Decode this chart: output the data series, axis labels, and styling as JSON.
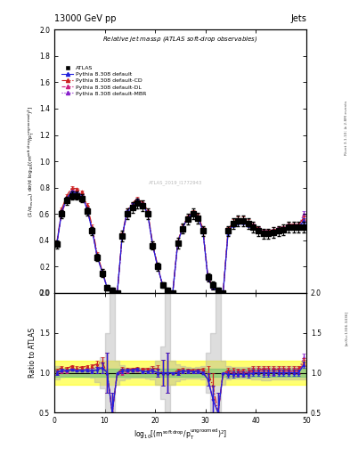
{
  "title_top": "13000 GeV pp",
  "title_right": "Jets",
  "plot_title": "Relative jet massρ (ATLAS soft-drop observables)",
  "ylabel_main": "(1/σ_{resum}) dσ/d log_{10}[(m^{soft drop}/p_T^{ungroomed})^2]",
  "ylabel_ratio": "Ratio to ATLAS",
  "arxiv": "[arXiv:1306.3436]",
  "rivet": "Rivet 3.1.10; ≥ 2.8M events",
  "watermark": "ATLAS_2019_I1772943",
  "xdata": [
    0.5,
    1.5,
    2.5,
    3.5,
    4.5,
    5.5,
    6.5,
    7.5,
    8.5,
    9.5,
    10.5,
    11.5,
    12.5,
    13.5,
    14.5,
    15.5,
    16.5,
    17.5,
    18.5,
    19.5,
    20.5,
    21.5,
    22.5,
    23.5,
    24.5,
    25.5,
    26.5,
    27.5,
    28.5,
    29.5,
    30.5,
    31.5,
    32.5,
    33.5,
    34.5,
    35.5,
    36.5,
    37.5,
    38.5,
    39.5,
    40.5,
    41.5,
    42.5,
    43.5,
    44.5,
    45.5,
    46.5,
    47.5,
    48.5,
    49.5
  ],
  "atlas_y": [
    0.37,
    0.6,
    0.7,
    0.74,
    0.74,
    0.72,
    0.62,
    0.47,
    0.27,
    0.15,
    0.04,
    0.02,
    0.0,
    0.43,
    0.6,
    0.65,
    0.68,
    0.66,
    0.6,
    0.36,
    0.2,
    0.06,
    0.02,
    0.0,
    0.38,
    0.49,
    0.56,
    0.6,
    0.57,
    0.47,
    0.12,
    0.06,
    0.02,
    0.0,
    0.47,
    0.53,
    0.55,
    0.55,
    0.53,
    0.5,
    0.47,
    0.45,
    0.45,
    0.46,
    0.47,
    0.48,
    0.5,
    0.5,
    0.5,
    0.5
  ],
  "atlas_yerr": [
    0.03,
    0.03,
    0.03,
    0.03,
    0.03,
    0.03,
    0.03,
    0.03,
    0.03,
    0.03,
    0.02,
    0.02,
    0.01,
    0.04,
    0.04,
    0.04,
    0.04,
    0.04,
    0.04,
    0.03,
    0.03,
    0.02,
    0.02,
    0.01,
    0.04,
    0.04,
    0.04,
    0.04,
    0.04,
    0.04,
    0.03,
    0.03,
    0.02,
    0.01,
    0.04,
    0.04,
    0.04,
    0.04,
    0.04,
    0.04,
    0.04,
    0.04,
    0.04,
    0.04,
    0.04,
    0.04,
    0.04,
    0.04,
    0.04,
    0.04
  ],
  "py_def_y": [
    0.37,
    0.62,
    0.72,
    0.77,
    0.76,
    0.74,
    0.64,
    0.48,
    0.28,
    0.16,
    0.04,
    0.01,
    0.0,
    0.44,
    0.62,
    0.67,
    0.71,
    0.67,
    0.61,
    0.37,
    0.2,
    0.06,
    0.02,
    0.0,
    0.38,
    0.5,
    0.57,
    0.61,
    0.58,
    0.47,
    0.11,
    0.04,
    0.01,
    0.0,
    0.46,
    0.52,
    0.54,
    0.54,
    0.52,
    0.5,
    0.47,
    0.45,
    0.45,
    0.46,
    0.47,
    0.48,
    0.5,
    0.5,
    0.5,
    0.55
  ],
  "py_def_yerr": [
    0.01,
    0.01,
    0.01,
    0.01,
    0.01,
    0.01,
    0.01,
    0.01,
    0.01,
    0.01,
    0.01,
    0.005,
    0.005,
    0.01,
    0.01,
    0.01,
    0.01,
    0.01,
    0.01,
    0.01,
    0.01,
    0.01,
    0.005,
    0.005,
    0.01,
    0.01,
    0.01,
    0.01,
    0.01,
    0.01,
    0.01,
    0.01,
    0.005,
    0.005,
    0.02,
    0.02,
    0.02,
    0.02,
    0.02,
    0.02,
    0.02,
    0.02,
    0.02,
    0.02,
    0.02,
    0.02,
    0.02,
    0.02,
    0.02,
    0.02
  ],
  "py_cd_y": [
    0.38,
    0.64,
    0.74,
    0.8,
    0.79,
    0.77,
    0.67,
    0.51,
    0.3,
    0.17,
    0.04,
    0.01,
    0.0,
    0.45,
    0.63,
    0.68,
    0.72,
    0.69,
    0.63,
    0.38,
    0.21,
    0.06,
    0.02,
    0.0,
    0.39,
    0.51,
    0.58,
    0.62,
    0.59,
    0.49,
    0.12,
    0.05,
    0.01,
    0.0,
    0.48,
    0.54,
    0.56,
    0.56,
    0.54,
    0.52,
    0.49,
    0.47,
    0.47,
    0.48,
    0.49,
    0.5,
    0.52,
    0.52,
    0.52,
    0.57
  ],
  "py_cd_yerr": [
    0.01,
    0.01,
    0.01,
    0.01,
    0.01,
    0.01,
    0.01,
    0.01,
    0.01,
    0.01,
    0.01,
    0.005,
    0.005,
    0.01,
    0.01,
    0.01,
    0.01,
    0.01,
    0.01,
    0.01,
    0.01,
    0.01,
    0.005,
    0.005,
    0.01,
    0.01,
    0.01,
    0.01,
    0.01,
    0.01,
    0.01,
    0.01,
    0.005,
    0.005,
    0.02,
    0.02,
    0.02,
    0.02,
    0.02,
    0.02,
    0.02,
    0.02,
    0.02,
    0.02,
    0.02,
    0.02,
    0.02,
    0.02,
    0.02,
    0.02
  ],
  "py_dl_y": [
    0.37,
    0.61,
    0.71,
    0.77,
    0.76,
    0.74,
    0.64,
    0.48,
    0.28,
    0.16,
    0.04,
    0.01,
    0.0,
    0.43,
    0.61,
    0.67,
    0.7,
    0.67,
    0.61,
    0.37,
    0.2,
    0.06,
    0.02,
    0.0,
    0.38,
    0.5,
    0.57,
    0.61,
    0.58,
    0.47,
    0.11,
    0.04,
    0.01,
    0.0,
    0.47,
    0.53,
    0.55,
    0.55,
    0.53,
    0.51,
    0.48,
    0.46,
    0.46,
    0.47,
    0.48,
    0.49,
    0.51,
    0.51,
    0.51,
    0.56
  ],
  "py_dl_yerr": [
    0.01,
    0.01,
    0.01,
    0.01,
    0.01,
    0.01,
    0.01,
    0.01,
    0.01,
    0.01,
    0.01,
    0.005,
    0.005,
    0.01,
    0.01,
    0.01,
    0.01,
    0.01,
    0.01,
    0.01,
    0.01,
    0.01,
    0.005,
    0.005,
    0.01,
    0.01,
    0.01,
    0.01,
    0.01,
    0.01,
    0.01,
    0.01,
    0.005,
    0.005,
    0.02,
    0.02,
    0.02,
    0.02,
    0.02,
    0.02,
    0.02,
    0.02,
    0.02,
    0.02,
    0.02,
    0.02,
    0.02,
    0.02,
    0.02,
    0.02
  ],
  "py_mbr_y": [
    0.37,
    0.62,
    0.72,
    0.78,
    0.77,
    0.75,
    0.65,
    0.49,
    0.29,
    0.16,
    0.04,
    0.01,
    0.0,
    0.44,
    0.62,
    0.67,
    0.71,
    0.68,
    0.62,
    0.37,
    0.2,
    0.06,
    0.02,
    0.0,
    0.38,
    0.5,
    0.57,
    0.61,
    0.58,
    0.48,
    0.11,
    0.04,
    0.01,
    0.0,
    0.47,
    0.53,
    0.55,
    0.55,
    0.53,
    0.51,
    0.48,
    0.46,
    0.46,
    0.47,
    0.48,
    0.49,
    0.51,
    0.51,
    0.51,
    0.6
  ],
  "py_mbr_yerr": [
    0.01,
    0.01,
    0.01,
    0.01,
    0.01,
    0.01,
    0.01,
    0.01,
    0.01,
    0.01,
    0.01,
    0.005,
    0.005,
    0.01,
    0.01,
    0.01,
    0.01,
    0.01,
    0.01,
    0.01,
    0.01,
    0.01,
    0.005,
    0.005,
    0.01,
    0.01,
    0.01,
    0.01,
    0.01,
    0.01,
    0.01,
    0.01,
    0.005,
    0.005,
    0.02,
    0.02,
    0.02,
    0.02,
    0.02,
    0.02,
    0.02,
    0.02,
    0.02,
    0.02,
    0.02,
    0.02,
    0.02,
    0.02,
    0.02,
    0.02
  ],
  "color_atlas": "#000000",
  "color_default": "#2020dd",
  "color_cd": "#cc2020",
  "color_dl": "#cc2080",
  "color_mbr": "#8820cc",
  "xlim": [
    0,
    50
  ],
  "ylim_main": [
    0.0,
    2.0
  ],
  "ylim_ratio": [
    0.5,
    2.0
  ],
  "xticks": [
    0,
    10,
    20,
    30,
    40,
    50
  ],
  "yticks_main": [
    0.0,
    0.2,
    0.4,
    0.6,
    0.8,
    1.0,
    1.2,
    1.4,
    1.6,
    1.8,
    2.0
  ],
  "yticks_ratio": [
    0.5,
    1.0,
    1.5,
    2.0
  ]
}
